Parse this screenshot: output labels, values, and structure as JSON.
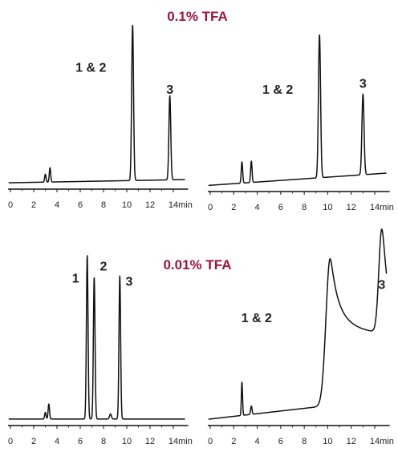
{
  "chart_data": [
    {
      "type": "line",
      "title": "0.1% TFA",
      "title_color": "#a3123c",
      "xlabel": "min",
      "xlim": [
        0,
        15
      ],
      "ylim": [
        0,
        1
      ],
      "ticks": [
        "0",
        "2",
        "4",
        "6",
        "8",
        "10",
        "12",
        "14"
      ],
      "tick_values": [
        0,
        2,
        4,
        6,
        8,
        10,
        12,
        14
      ],
      "series_color": "#111111",
      "baseline": [
        [
          0,
          0.02
        ],
        [
          15,
          0.04
        ]
      ],
      "peaks": [
        {
          "x": 3.0,
          "h": 0.05,
          "w": 0.06
        },
        {
          "x": 3.4,
          "h": 0.09,
          "w": 0.06
        },
        {
          "x": 10.5,
          "h": 0.98,
          "w": 0.08
        },
        {
          "x": 13.7,
          "h": 0.53,
          "w": 0.08
        }
      ],
      "peak_labels": [
        {
          "text": "1 & 2",
          "x": 10.5,
          "y": 0.72
        },
        {
          "text": "3",
          "x": 13.7,
          "y": 0.58
        }
      ]
    },
    {
      "type": "line",
      "title": "",
      "xlabel": "min",
      "xlim": [
        0,
        15
      ],
      "ylim": [
        0,
        1
      ],
      "ticks": [
        "0",
        "2",
        "4",
        "6",
        "8",
        "10",
        "12",
        "14"
      ],
      "tick_values": [
        0,
        2,
        4,
        6,
        8,
        10,
        12,
        14
      ],
      "series_color": "#111111",
      "baseline": [
        [
          0,
          0.02
        ],
        [
          15,
          0.1
        ]
      ],
      "peaks": [
        {
          "x": 2.7,
          "h": 0.14,
          "w": 0.06
        },
        {
          "x": 3.5,
          "h": 0.14,
          "w": 0.06
        },
        {
          "x": 9.3,
          "h": 0.94,
          "w": 0.09
        },
        {
          "x": 13.0,
          "h": 0.53,
          "w": 0.09
        }
      ],
      "peak_labels": [
        {
          "text": "1 & 2",
          "x": 9.3,
          "y": 0.62
        },
        {
          "text": "3",
          "x": 13.0,
          "y": 0.66
        }
      ]
    },
    {
      "type": "line",
      "title": "0.01% TFA",
      "title_color": "#a3123c",
      "xlabel": "min",
      "xlim": [
        0,
        15
      ],
      "ylim": [
        0,
        1
      ],
      "ticks": [
        "0",
        "2",
        "4",
        "6",
        "8",
        "10",
        "12",
        "14"
      ],
      "tick_values": [
        0,
        2,
        4,
        6,
        8,
        10,
        12,
        14
      ],
      "series_color": "#111111",
      "baseline": [
        [
          0,
          0.02
        ],
        [
          15,
          0.02
        ]
      ],
      "peaks": [
        {
          "x": 3.0,
          "h": 0.04,
          "w": 0.06
        },
        {
          "x": 3.3,
          "h": 0.09,
          "w": 0.06
        },
        {
          "x": 6.6,
          "h": 0.98,
          "w": 0.07
        },
        {
          "x": 7.2,
          "h": 0.85,
          "w": 0.07
        },
        {
          "x": 8.6,
          "h": 0.03,
          "w": 0.08
        },
        {
          "x": 9.4,
          "h": 0.86,
          "w": 0.07
        }
      ],
      "peak_labels": [
        {
          "text": "1",
          "x": 5.6,
          "y": 0.84
        },
        {
          "text": "2",
          "x": 8.0,
          "y": 0.91
        },
        {
          "text": "3",
          "x": 10.2,
          "y": 0.82
        }
      ]
    },
    {
      "type": "line",
      "title": "",
      "xlabel": "min",
      "xlim": [
        0,
        15
      ],
      "ylim": [
        0,
        1
      ],
      "ticks": [
        "0",
        "2",
        "4",
        "6",
        "8",
        "10",
        "12",
        "14"
      ],
      "tick_values": [
        0,
        2,
        4,
        6,
        8,
        10,
        12,
        14
      ],
      "series_color": "#111111",
      "baseline": [
        [
          0,
          0.02
        ],
        [
          15,
          0.14
        ]
      ],
      "peaks": [
        {
          "x": 2.7,
          "h": 0.2,
          "w": 0.05
        },
        {
          "x": 3.5,
          "h": 0.05,
          "w": 0.06
        },
        {
          "x": 10.2,
          "h": 0.88,
          "w": 0.35,
          "tail": 0.9
        },
        {
          "x": 14.6,
          "h": 0.62,
          "w": 0.25,
          "tail": 0.4
        }
      ],
      "peak_labels": [
        {
          "text": "1 & 2",
          "x": 7.5,
          "y": 0.6
        },
        {
          "text": "3",
          "x": 14.6,
          "y": 0.8
        }
      ]
    }
  ]
}
